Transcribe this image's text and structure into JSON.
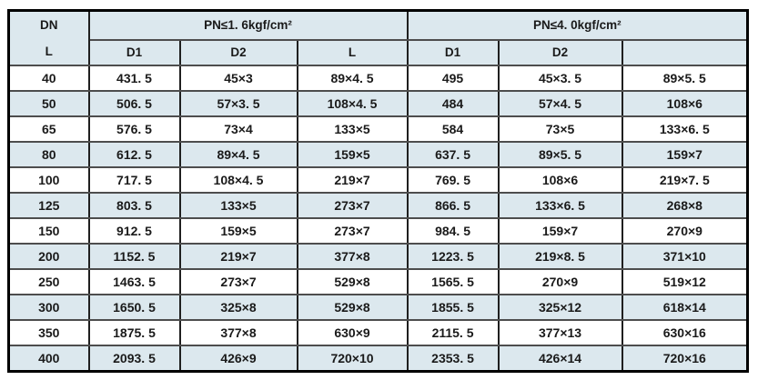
{
  "colors": {
    "stripe": "#dce8ee",
    "grid_vertical": "#1f1f1f",
    "grid_horizontal": "#4d4d4d",
    "outer_border": "#000000",
    "text": "#1a1a1a"
  },
  "table": {
    "corner": {
      "top": "DN",
      "bottom": "L"
    },
    "groups": [
      {
        "label": "PN≤1. 6kgf/cm²"
      },
      {
        "label": "PN≤4. 0kgf/cm²"
      }
    ],
    "subheaders": [
      "D1",
      "D2",
      "L",
      "D1",
      "D2",
      ""
    ],
    "rows": [
      {
        "dn": "40",
        "values": [
          "431. 5",
          "45×3",
          "89×4. 5",
          "495",
          "45×3. 5",
          "89×5. 5"
        ]
      },
      {
        "dn": "50",
        "values": [
          "506. 5",
          "57×3. 5",
          "108×4. 5",
          "484",
          "57×4. 5",
          "108×6"
        ]
      },
      {
        "dn": "65",
        "values": [
          "576. 5",
          "73×4",
          "133×5",
          "584",
          "73×5",
          "133×6. 5"
        ]
      },
      {
        "dn": "80",
        "values": [
          "612. 5",
          "89×4. 5",
          "159×5",
          "637. 5",
          "89×5. 5",
          "159×7"
        ]
      },
      {
        "dn": "100",
        "values": [
          "717. 5",
          "108×4. 5",
          "219×7",
          "769. 5",
          "108×6",
          "219×7. 5"
        ]
      },
      {
        "dn": "125",
        "values": [
          "803. 5",
          "133×5",
          "273×7",
          "866. 5",
          "133×6. 5",
          "268×8"
        ]
      },
      {
        "dn": "150",
        "values": [
          "912. 5",
          "159×5",
          "273×7",
          "984. 5",
          "159×7",
          "270×9"
        ]
      },
      {
        "dn": "200",
        "values": [
          "1152. 5",
          "219×7",
          "377×8",
          "1223. 5",
          "219×8. 5",
          "371×10"
        ]
      },
      {
        "dn": "250",
        "values": [
          "1463. 5",
          "273×7",
          "529×8",
          "1565. 5",
          "270×9",
          "519×12"
        ]
      },
      {
        "dn": "300",
        "values": [
          "1650. 5",
          "325×8",
          "529×8",
          "1855. 5",
          "325×12",
          "618×14"
        ]
      },
      {
        "dn": "350",
        "values": [
          "1875. 5",
          "377×8",
          "630×9",
          "2115. 5",
          "377×13",
          "630×16"
        ]
      },
      {
        "dn": "400",
        "values": [
          "2093. 5",
          "426×9",
          "720×10",
          "2353. 5",
          "426×14",
          "720×16"
        ]
      }
    ]
  }
}
